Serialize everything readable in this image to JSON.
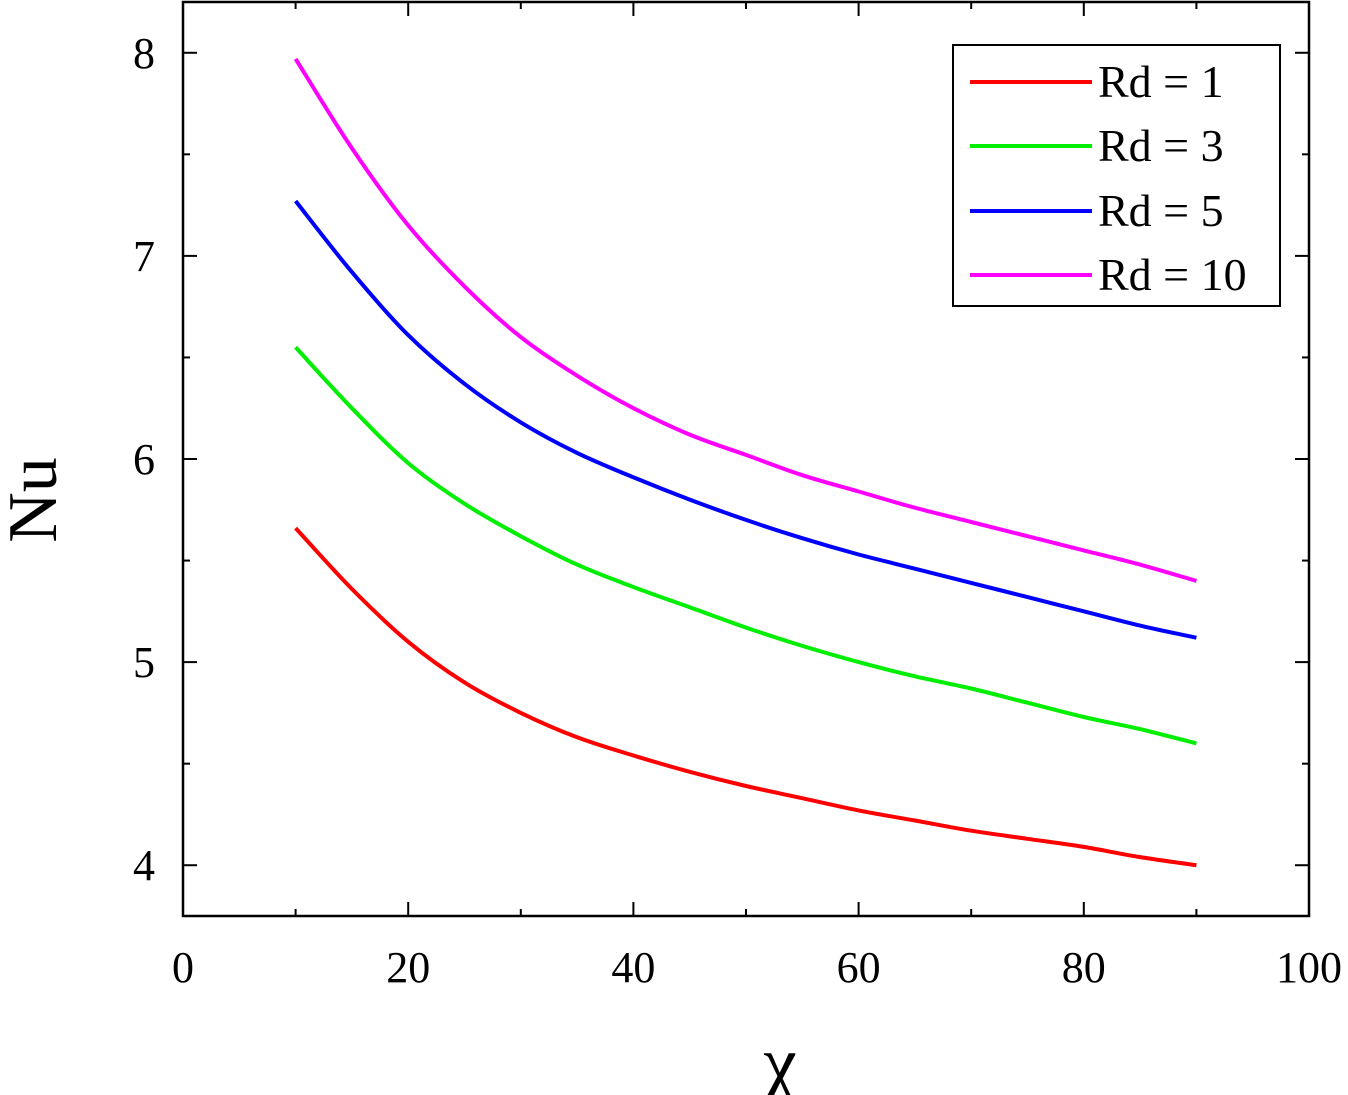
{
  "chart_data": {
    "type": "line",
    "title": "",
    "xlabel": "χ",
    "ylabel": "Nu",
    "xlim": [
      0,
      100
    ],
    "ylim": [
      3.75,
      8.25
    ],
    "x_ticks": [
      0,
      20,
      40,
      60,
      80,
      100
    ],
    "y_ticks": [
      4,
      5,
      6,
      7,
      8
    ],
    "grid": false,
    "legend_position": "top-right",
    "x": [
      10,
      15,
      20,
      25,
      30,
      35,
      40,
      45,
      50,
      55,
      60,
      65,
      70,
      75,
      80,
      85,
      90
    ],
    "series": [
      {
        "name": "Rd = 1",
        "color": "#ff0000",
        "values": [
          5.66,
          5.36,
          5.1,
          4.9,
          4.75,
          4.63,
          4.54,
          4.46,
          4.39,
          4.33,
          4.27,
          4.22,
          4.17,
          4.13,
          4.09,
          4.04,
          4.0
        ]
      },
      {
        "name": "Rd = 3",
        "color": "#00ee00",
        "values": [
          6.55,
          6.25,
          5.98,
          5.78,
          5.62,
          5.48,
          5.37,
          5.27,
          5.17,
          5.08,
          5.0,
          4.93,
          4.87,
          4.8,
          4.73,
          4.67,
          4.6
        ]
      },
      {
        "name": "Rd = 5",
        "color": "#0000ff",
        "values": [
          7.27,
          6.92,
          6.61,
          6.37,
          6.18,
          6.03,
          5.91,
          5.8,
          5.7,
          5.61,
          5.53,
          5.46,
          5.39,
          5.32,
          5.25,
          5.18,
          5.12
        ]
      },
      {
        "name": "Rd = 10",
        "color": "#ff00ff",
        "values": [
          7.97,
          7.53,
          7.15,
          6.85,
          6.6,
          6.41,
          6.25,
          6.12,
          6.02,
          5.92,
          5.84,
          5.76,
          5.69,
          5.62,
          5.55,
          5.48,
          5.4
        ]
      }
    ]
  }
}
